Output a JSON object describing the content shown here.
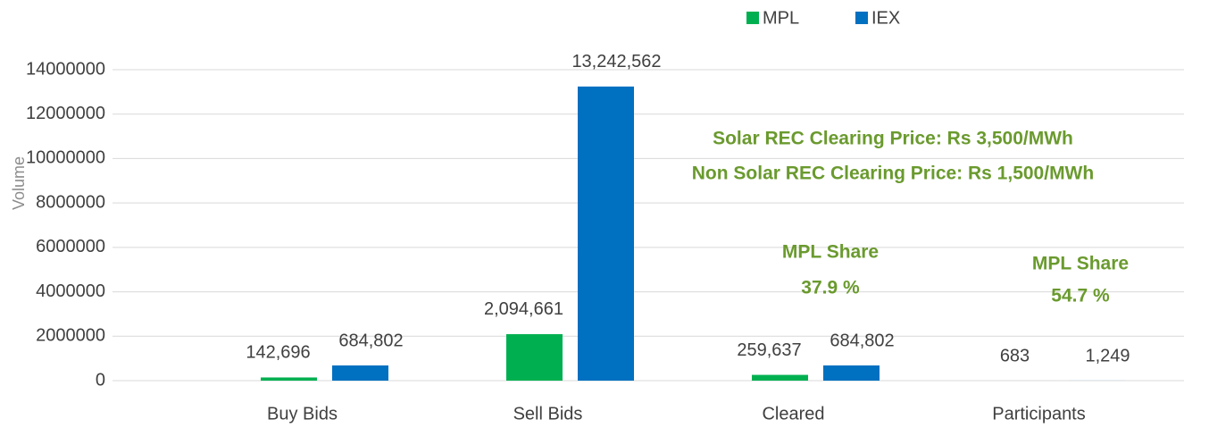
{
  "chart_data": {
    "type": "bar",
    "y_axis_label": "Volume",
    "categories": [
      "Buy Bids",
      "Sell Bids",
      "Cleared",
      "Participants"
    ],
    "series": [
      {
        "name": "MPL",
        "color": "#00b050",
        "values": [
          142696,
          2094661,
          259637,
          683
        ],
        "value_labels": [
          "142,696",
          "2,094,661",
          "259,637",
          "683"
        ]
      },
      {
        "name": "IEX",
        "color": "#0070c0",
        "values": [
          684802,
          13242562,
          684802,
          1249
        ],
        "value_labels": [
          "684,802",
          "13,242,562",
          "684,802",
          "1,249"
        ]
      }
    ],
    "ylim": [
      0,
      14000000
    ],
    "yticks": [
      0,
      2000000,
      4000000,
      6000000,
      8000000,
      10000000,
      12000000,
      14000000
    ],
    "grid": true,
    "legend": "top",
    "annotations": [
      "Solar REC Clearing  Price:  Rs 3,500/MWh",
      "Non Solar REC Clearing  Price:  Rs 1,500/MWh",
      "MPL Share",
      "37.9 %",
      "MPL Share",
      "54.7 %"
    ],
    "annotation_color": "#6a9a2e"
  }
}
